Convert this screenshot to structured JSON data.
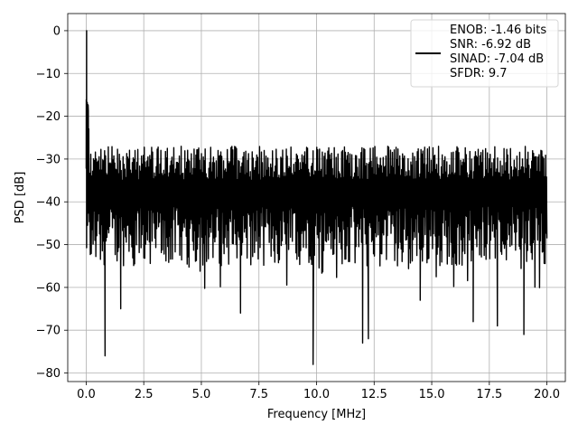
{
  "chart_data": {
    "type": "line",
    "title": "",
    "xlabel": "Frequency [MHz]",
    "ylabel": "PSD [dB]",
    "xlim": [
      -0.8,
      20.8
    ],
    "ylim": [
      -82,
      4
    ],
    "grid": true,
    "x_ticks": [
      0.0,
      2.5,
      5.0,
      7.5,
      10.0,
      12.5,
      15.0,
      17.5,
      20.0
    ],
    "x_tick_labels": [
      "0.0",
      "2.5",
      "5.0",
      "7.5",
      "10.0",
      "12.5",
      "15.0",
      "17.5",
      "20.0"
    ],
    "y_ticks": [
      0,
      -10,
      -20,
      -30,
      -40,
      -50,
      -60,
      -70,
      -80
    ],
    "y_tick_labels": [
      "0",
      "−10",
      "−20",
      "−30",
      "−40",
      "−50",
      "−60",
      "−70",
      "−80"
    ],
    "legend_position": "top-right",
    "legend_entries": [
      "ENOB: -1.46 bits",
      "SNR: -6.92 dB",
      "SINAD: -7.04 dB",
      "SFDR: 9.7"
    ],
    "series": [
      {
        "color": "#000000",
        "x_range": [
          0,
          20
        ],
        "points": 1000,
        "peak": {
          "x": 0.02,
          "y": 0
        },
        "upper_envelope_db": -27,
        "mean_db": -38,
        "lower_envelope_db": -55,
        "deep_notches": [
          {
            "x": 0.82,
            "y": -76
          },
          {
            "x": 9.85,
            "y": -78
          },
          {
            "x": 12.0,
            "y": -73
          },
          {
            "x": 12.25,
            "y": -72
          },
          {
            "x": 19.0,
            "y": -71
          },
          {
            "x": 6.7,
            "y": -66
          },
          {
            "x": 16.8,
            "y": -68
          },
          {
            "x": 1.5,
            "y": -65
          },
          {
            "x": 17.85,
            "y": -69
          },
          {
            "x": 14.5,
            "y": -63
          }
        ]
      }
    ]
  }
}
